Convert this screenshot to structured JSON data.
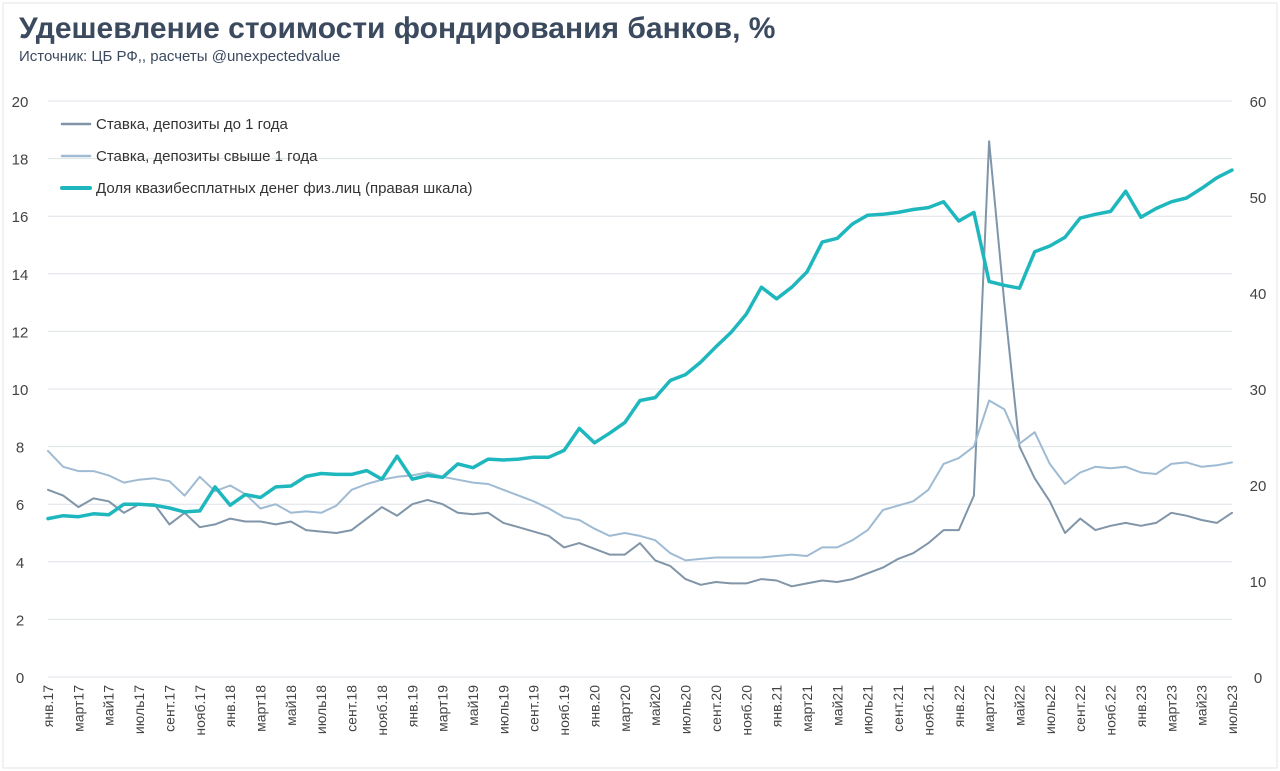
{
  "header": {
    "title": "Удешевление стоимости фондирования банков, %",
    "subtitle": "Источник: ЦБ РФ,, расчеты @unexpectedvalue"
  },
  "colors": {
    "series1": "#8095a8",
    "series2": "#9fbbd3",
    "series3": "#1fb7be",
    "grid": "#dde2e8",
    "axis_text": "#444444"
  },
  "chart_data": {
    "type": "line",
    "title": "Удешевление стоимости фондирования банков, %",
    "subtitle": "Источник: ЦБ РФ,, расчеты @unexpectedvalue",
    "xlabel": "",
    "ylabel": "",
    "y_left": {
      "min": 0,
      "max": 20,
      "ticks": [
        0,
        2,
        4,
        6,
        8,
        10,
        12,
        14,
        16,
        18,
        20
      ]
    },
    "y_right": {
      "min": 0,
      "max": 60,
      "ticks": [
        0,
        10,
        20,
        30,
        40,
        50,
        60
      ]
    },
    "grid": "horizontal",
    "legend_position": "top-left",
    "x_labels": [
      "янв.17",
      "март17",
      "май17",
      "июль17",
      "сент.17",
      "нояб.17",
      "янв.18",
      "март18",
      "май18",
      "июль18",
      "сент.18",
      "нояб.18",
      "янв.19",
      "март19",
      "май19",
      "июль19",
      "сент.19",
      "нояб.19",
      "янв.20",
      "март20",
      "май20",
      "июль20",
      "сент.20",
      "нояб.20",
      "янв.21",
      "март21",
      "май21",
      "июль21",
      "сент.21",
      "нояб.21",
      "янв.22",
      "март22",
      "май22",
      "июль22",
      "сент.22",
      "нояб.22",
      "янв.23",
      "март23",
      "май23",
      "июль23"
    ],
    "series": [
      {
        "name": "Ставка, депозиты до 1 года",
        "axis": "left",
        "values": [
          6.5,
          6.3,
          5.9,
          6.2,
          6.1,
          5.7,
          6.0,
          6.0,
          5.3,
          5.7,
          5.2,
          5.3,
          5.5,
          5.4,
          5.4,
          5.3,
          5.4,
          5.1,
          5.05,
          5.0,
          5.1,
          5.5,
          5.9,
          5.6,
          6.0,
          6.15,
          6.0,
          5.7,
          5.65,
          5.7,
          5.35,
          5.2,
          5.05,
          4.9,
          4.5,
          4.65,
          4.45,
          4.25,
          4.25,
          4.65,
          4.05,
          3.85,
          3.4,
          3.2,
          3.3,
          3.25,
          3.25,
          3.4,
          3.35,
          3.15,
          3.25,
          3.35,
          3.3,
          3.4,
          3.6,
          3.8,
          4.1,
          4.3,
          4.65,
          5.1,
          5.1,
          6.3,
          18.6,
          13.0,
          8.0,
          6.9,
          6.1,
          5.0,
          5.5,
          5.1,
          5.25,
          5.35,
          5.25,
          5.35,
          5.7,
          5.6,
          5.45,
          5.35,
          5.7
        ]
      },
      {
        "name": "Ставка, депозиты свыше 1 года",
        "axis": "left",
        "values": [
          7.85,
          7.3,
          7.15,
          7.15,
          7.0,
          6.75,
          6.85,
          6.9,
          6.8,
          6.3,
          6.95,
          6.45,
          6.65,
          6.35,
          5.85,
          6.0,
          5.7,
          5.75,
          5.7,
          5.95,
          6.5,
          6.7,
          6.85,
          6.95,
          7.0,
          7.1,
          6.95,
          6.85,
          6.75,
          6.7,
          6.5,
          6.3,
          6.1,
          5.85,
          5.55,
          5.45,
          5.15,
          4.9,
          5.0,
          4.9,
          4.75,
          4.3,
          4.05,
          4.1,
          4.15,
          4.15,
          4.15,
          4.15,
          4.2,
          4.25,
          4.2,
          4.5,
          4.5,
          4.75,
          5.1,
          5.8,
          5.95,
          6.1,
          6.5,
          7.4,
          7.6,
          8.0,
          9.6,
          9.3,
          8.1,
          8.5,
          7.4,
          6.7,
          7.1,
          7.3,
          7.25,
          7.3,
          7.1,
          7.05,
          7.4,
          7.45,
          7.3,
          7.35,
          7.45
        ]
      },
      {
        "name": "Доля квазибесплатных денег физ.лиц (правая шкала)",
        "axis": "right",
        "values": [
          16.5,
          16.8,
          16.7,
          17.0,
          16.9,
          18.0,
          18.0,
          17.9,
          17.6,
          17.2,
          17.3,
          19.8,
          17.9,
          19.0,
          18.7,
          19.8,
          19.9,
          20.9,
          21.2,
          21.1,
          21.1,
          21.5,
          20.6,
          23.0,
          20.6,
          21.0,
          20.8,
          22.2,
          21.8,
          22.7,
          22.6,
          22.7,
          22.9,
          22.9,
          23.6,
          25.9,
          24.4,
          25.4,
          26.5,
          28.8,
          29.1,
          30.9,
          31.5,
          32.8,
          34.4,
          35.9,
          37.8,
          40.6,
          39.4,
          40.6,
          42.2,
          45.3,
          45.7,
          47.2,
          48.1,
          48.2,
          48.4,
          48.7,
          48.9,
          49.5,
          47.5,
          48.4,
          41.2,
          40.8,
          40.5,
          44.3,
          44.9,
          45.8,
          47.8,
          48.2,
          48.5,
          50.6,
          47.9,
          48.8,
          49.5,
          49.9,
          50.9,
          52.0,
          52.8
        ]
      }
    ]
  }
}
